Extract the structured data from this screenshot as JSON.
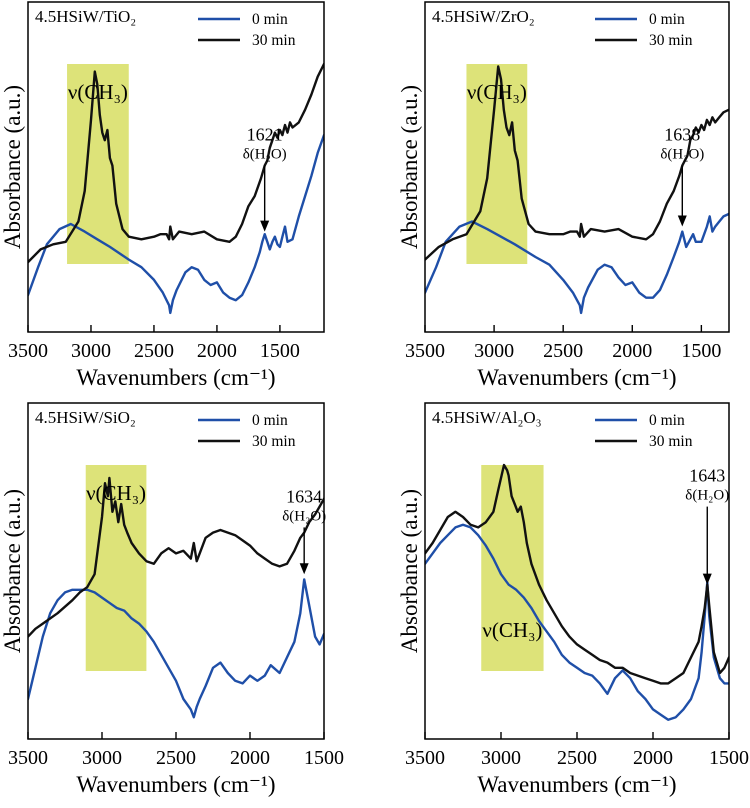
{
  "colors": {
    "series_0min": "#1f4fa8",
    "series_30min": "#111111",
    "highlight": "#dde379"
  },
  "chart_data": [
    {
      "type": "line",
      "title": "4.5HSiW/TiO₂",
      "xlabel": "Wavenumbers (cm⁻¹)",
      "ylabel": "Absorbance (a.u.)",
      "xlim": [
        3500,
        1150
      ],
      "xticks": [
        3500,
        3000,
        2500,
        2000,
        1500
      ],
      "ylim": [
        0,
        1
      ],
      "highlight_region": [
        3190,
        2700
      ],
      "band_label": "ν(CH₃)",
      "peak_label": "1621",
      "peak_sublabel": "δ(H₂O)",
      "peak_x": 1621,
      "peak_arrow_y": [
        0.6,
        0.34
      ],
      "series": [
        {
          "name": "0 min",
          "color": "#1f4fa8",
          "x": [
            3500,
            3420,
            3350,
            3250,
            3160,
            3050,
            2950,
            2850,
            2700,
            2600,
            2500,
            2430,
            2380,
            2370,
            2350,
            2320,
            2250,
            2200,
            2150,
            2100,
            2050,
            2000,
            1950,
            1900,
            1850,
            1800,
            1750,
            1700,
            1660,
            1640,
            1621,
            1600,
            1580,
            1560,
            1540,
            1520,
            1500,
            1480,
            1460,
            1440,
            1400,
            1350,
            1300,
            1250,
            1200,
            1150
          ],
          "values": [
            0.09,
            0.2,
            0.29,
            0.35,
            0.37,
            0.34,
            0.31,
            0.28,
            0.23,
            0.2,
            0.15,
            0.1,
            0.05,
            0.02,
            0.07,
            0.11,
            0.18,
            0.2,
            0.19,
            0.15,
            0.13,
            0.14,
            0.1,
            0.08,
            0.07,
            0.09,
            0.14,
            0.2,
            0.26,
            0.3,
            0.33,
            0.3,
            0.27,
            0.3,
            0.32,
            0.29,
            0.28,
            0.32,
            0.36,
            0.3,
            0.31,
            0.4,
            0.48,
            0.56,
            0.65,
            0.72
          ]
        },
        {
          "name": "30 min",
          "color": "#111111",
          "x": [
            3500,
            3400,
            3300,
            3200,
            3100,
            3050,
            3000,
            2970,
            2950,
            2930,
            2910,
            2890,
            2870,
            2850,
            2830,
            2800,
            2750,
            2700,
            2600,
            2500,
            2450,
            2400,
            2380,
            2370,
            2350,
            2300,
            2200,
            2100,
            2000,
            1900,
            1850,
            1800,
            1750,
            1700,
            1650,
            1621,
            1600,
            1580,
            1560,
            1540,
            1520,
            1500,
            1480,
            1460,
            1440,
            1420,
            1400,
            1350,
            1300,
            1250,
            1200,
            1150
          ],
          "values": [
            0.22,
            0.27,
            0.29,
            0.3,
            0.38,
            0.5,
            0.78,
            0.97,
            0.92,
            0.8,
            0.73,
            0.7,
            0.74,
            0.63,
            0.6,
            0.45,
            0.35,
            0.32,
            0.31,
            0.32,
            0.33,
            0.33,
            0.31,
            0.36,
            0.31,
            0.34,
            0.33,
            0.34,
            0.31,
            0.3,
            0.32,
            0.37,
            0.44,
            0.48,
            0.55,
            0.6,
            0.62,
            0.67,
            0.7,
            0.73,
            0.71,
            0.74,
            0.72,
            0.76,
            0.73,
            0.77,
            0.75,
            0.77,
            0.82,
            0.88,
            0.95,
            1.0
          ]
        }
      ]
    },
    {
      "type": "line",
      "title": "4.5HSiW/ZrO₂",
      "xlabel": "Wavenumbers (cm⁻¹)",
      "ylabel": "Absorbance (a.u.)",
      "xlim": [
        3500,
        1300
      ],
      "xticks": [
        3500,
        3000,
        2500,
        2000,
        1500
      ],
      "ylim": [
        0,
        1
      ],
      "highlight_region": [
        3200,
        2760
      ],
      "band_label": "ν(CH₃)",
      "peak_label": "1638",
      "peak_sublabel": "δ(H₂O)",
      "peak_x": 1638,
      "peak_arrow_y": [
        0.6,
        0.36
      ],
      "series": [
        {
          "name": "0 min",
          "color": "#1f4fa8",
          "x": [
            3500,
            3420,
            3350,
            3250,
            3160,
            3050,
            2950,
            2850,
            2700,
            2600,
            2500,
            2430,
            2380,
            2370,
            2350,
            2320,
            2250,
            2200,
            2150,
            2100,
            2050,
            2000,
            1950,
            1900,
            1850,
            1800,
            1750,
            1700,
            1660,
            1638,
            1610,
            1580,
            1560,
            1540,
            1500,
            1460,
            1440,
            1420,
            1400,
            1370,
            1340,
            1300
          ],
          "values": [
            0.1,
            0.2,
            0.3,
            0.36,
            0.38,
            0.35,
            0.32,
            0.29,
            0.24,
            0.21,
            0.15,
            0.1,
            0.05,
            0.02,
            0.08,
            0.12,
            0.19,
            0.21,
            0.2,
            0.16,
            0.13,
            0.14,
            0.1,
            0.08,
            0.08,
            0.11,
            0.17,
            0.24,
            0.3,
            0.34,
            0.28,
            0.31,
            0.33,
            0.3,
            0.3,
            0.36,
            0.4,
            0.34,
            0.36,
            0.38,
            0.4,
            0.41
          ]
        },
        {
          "name": "30 min",
          "color": "#111111",
          "x": [
            3500,
            3400,
            3300,
            3200,
            3100,
            3050,
            3000,
            2970,
            2950,
            2930,
            2910,
            2890,
            2870,
            2850,
            2830,
            2800,
            2750,
            2700,
            2600,
            2500,
            2450,
            2400,
            2380,
            2370,
            2350,
            2300,
            2200,
            2100,
            2000,
            1900,
            1850,
            1800,
            1750,
            1700,
            1660,
            1638,
            1600,
            1580,
            1560,
            1540,
            1520,
            1500,
            1480,
            1460,
            1440,
            1420,
            1400,
            1370,
            1340,
            1300
          ],
          "values": [
            0.23,
            0.28,
            0.31,
            0.33,
            0.42,
            0.55,
            0.82,
            0.99,
            0.94,
            0.82,
            0.75,
            0.72,
            0.77,
            0.66,
            0.62,
            0.47,
            0.37,
            0.34,
            0.33,
            0.33,
            0.34,
            0.34,
            0.32,
            0.37,
            0.32,
            0.35,
            0.34,
            0.35,
            0.32,
            0.31,
            0.33,
            0.38,
            0.45,
            0.5,
            0.56,
            0.6,
            0.64,
            0.7,
            0.72,
            0.75,
            0.73,
            0.76,
            0.74,
            0.78,
            0.76,
            0.79,
            0.77,
            0.79,
            0.81,
            0.82
          ]
        }
      ]
    },
    {
      "type": "line",
      "title": "4.5HSiW/SiO₂",
      "xlabel": "Wavenumbers (cm⁻¹)",
      "ylabel": "Absorbance (a.u.)",
      "xlim": [
        3500,
        1500
      ],
      "xticks": [
        3500,
        3000,
        2500,
        2000,
        1500
      ],
      "ylim": [
        0,
        1
      ],
      "highlight_region": [
        3110,
        2700
      ],
      "band_label": "ν(CH₃)",
      "peak_label": "1634",
      "peak_sublabel": "δ(H₂O)",
      "peak_x": 1634,
      "peak_arrow_y": [
        0.76,
        0.58
      ],
      "series": [
        {
          "name": "0 min",
          "color": "#1f4fa8",
          "x": [
            3500,
            3450,
            3400,
            3350,
            3300,
            3250,
            3200,
            3150,
            3100,
            3050,
            3000,
            2950,
            2900,
            2850,
            2800,
            2750,
            2700,
            2650,
            2600,
            2550,
            2500,
            2450,
            2400,
            2380,
            2360,
            2340,
            2300,
            2250,
            2200,
            2150,
            2100,
            2050,
            2000,
            1950,
            1900,
            1860,
            1800,
            1750,
            1700,
            1660,
            1634,
            1600,
            1560,
            1530,
            1500
          ],
          "values": [
            0.1,
            0.22,
            0.34,
            0.43,
            0.48,
            0.51,
            0.52,
            0.52,
            0.52,
            0.51,
            0.49,
            0.47,
            0.45,
            0.44,
            0.41,
            0.39,
            0.36,
            0.32,
            0.27,
            0.22,
            0.17,
            0.1,
            0.06,
            0.03,
            0.07,
            0.1,
            0.15,
            0.22,
            0.24,
            0.2,
            0.17,
            0.16,
            0.19,
            0.17,
            0.19,
            0.23,
            0.2,
            0.26,
            0.32,
            0.43,
            0.56,
            0.46,
            0.34,
            0.31,
            0.35
          ]
        },
        {
          "name": "30 min",
          "color": "#111111",
          "x": [
            3500,
            3450,
            3400,
            3300,
            3200,
            3150,
            3100,
            3050,
            3000,
            2980,
            2960,
            2950,
            2930,
            2910,
            2890,
            2870,
            2850,
            2830,
            2800,
            2750,
            2700,
            2650,
            2600,
            2550,
            2500,
            2450,
            2400,
            2380,
            2360,
            2340,
            2300,
            2250,
            2200,
            2150,
            2100,
            2050,
            2000,
            1950,
            1900,
            1850,
            1800,
            1750,
            1700,
            1660,
            1634,
            1600,
            1560,
            1530,
            1500
          ],
          "values": [
            0.34,
            0.37,
            0.39,
            0.43,
            0.48,
            0.51,
            0.53,
            0.58,
            0.8,
            0.93,
            0.88,
            0.95,
            0.82,
            0.86,
            0.78,
            0.85,
            0.77,
            0.74,
            0.7,
            0.66,
            0.63,
            0.62,
            0.66,
            0.68,
            0.66,
            0.67,
            0.64,
            0.7,
            0.63,
            0.66,
            0.72,
            0.74,
            0.75,
            0.74,
            0.73,
            0.71,
            0.69,
            0.66,
            0.64,
            0.62,
            0.61,
            0.62,
            0.67,
            0.72,
            0.74,
            0.78,
            0.81,
            0.84,
            0.87
          ]
        }
      ]
    },
    {
      "type": "line",
      "title": "4.5HSiW/Al₂O₃",
      "xlabel": "Wavenumbers (cm⁻¹)",
      "ylabel": "Absorbance (a.u.)",
      "xlim": [
        3500,
        1500
      ],
      "xticks": [
        3500,
        3000,
        2500,
        2000,
        1500
      ],
      "ylim": [
        0,
        1
      ],
      "highlight_region": [
        3130,
        2720
      ],
      "band_label": "ν(CH₃)",
      "band_label_position": "lower",
      "peak_label": "1643",
      "peak_sublabel": "δ(H₂O)",
      "peak_x": 1643,
      "peak_arrow_y": [
        0.84,
        0.54
      ],
      "series": [
        {
          "name": "0 min",
          "color": "#1f4fa8",
          "x": [
            3500,
            3450,
            3400,
            3350,
            3300,
            3250,
            3200,
            3150,
            3100,
            3050,
            3000,
            2950,
            2900,
            2850,
            2800,
            2750,
            2700,
            2650,
            2600,
            2550,
            2500,
            2450,
            2400,
            2350,
            2300,
            2250,
            2200,
            2150,
            2100,
            2050,
            2000,
            1950,
            1900,
            1850,
            1800,
            1750,
            1700,
            1680,
            1660,
            1643,
            1630,
            1600,
            1560,
            1530,
            1500
          ],
          "values": [
            0.62,
            0.66,
            0.7,
            0.73,
            0.76,
            0.77,
            0.76,
            0.73,
            0.69,
            0.64,
            0.58,
            0.54,
            0.52,
            0.49,
            0.45,
            0.4,
            0.36,
            0.32,
            0.27,
            0.24,
            0.22,
            0.2,
            0.19,
            0.16,
            0.12,
            0.18,
            0.21,
            0.18,
            0.13,
            0.1,
            0.06,
            0.04,
            0.02,
            0.03,
            0.06,
            0.1,
            0.18,
            0.28,
            0.42,
            0.55,
            0.42,
            0.26,
            0.18,
            0.16,
            0.16
          ]
        },
        {
          "name": "30 min",
          "color": "#111111",
          "x": [
            3500,
            3450,
            3400,
            3350,
            3300,
            3250,
            3200,
            3150,
            3100,
            3050,
            3020,
            3000,
            2980,
            2960,
            2950,
            2930,
            2910,
            2890,
            2870,
            2850,
            2830,
            2800,
            2750,
            2700,
            2650,
            2600,
            2550,
            2500,
            2450,
            2400,
            2350,
            2300,
            2250,
            2200,
            2150,
            2100,
            2050,
            2000,
            1950,
            1900,
            1850,
            1800,
            1750,
            1700,
            1680,
            1660,
            1643,
            1630,
            1600,
            1560,
            1530,
            1500
          ],
          "values": [
            0.66,
            0.7,
            0.75,
            0.8,
            0.82,
            0.8,
            0.77,
            0.76,
            0.78,
            0.82,
            0.9,
            0.95,
            1.0,
            0.98,
            0.96,
            0.88,
            0.85,
            0.82,
            0.84,
            0.78,
            0.7,
            0.62,
            0.54,
            0.48,
            0.43,
            0.38,
            0.34,
            0.31,
            0.29,
            0.27,
            0.25,
            0.24,
            0.22,
            0.22,
            0.2,
            0.19,
            0.18,
            0.17,
            0.16,
            0.16,
            0.18,
            0.2,
            0.26,
            0.32,
            0.38,
            0.45,
            0.54,
            0.46,
            0.28,
            0.2,
            0.22,
            0.26
          ]
        }
      ]
    }
  ]
}
